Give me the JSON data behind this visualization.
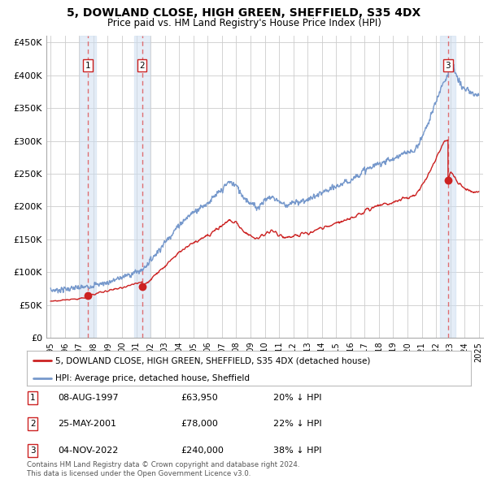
{
  "title": "5, DOWLAND CLOSE, HIGH GREEN, SHEFFIELD, S35 4DX",
  "subtitle": "Price paid vs. HM Land Registry's House Price Index (HPI)",
  "yticks": [
    0,
    50000,
    100000,
    150000,
    200000,
    250000,
    300000,
    350000,
    400000,
    450000
  ],
  "ytick_labels": [
    "£0",
    "£50K",
    "£100K",
    "£150K",
    "£200K",
    "£250K",
    "£300K",
    "£350K",
    "£400K",
    "£450K"
  ],
  "xlim_start": 1994.7,
  "xlim_end": 2025.3,
  "ylim_min": 0,
  "ylim_max": 460000,
  "sale_dates": [
    1997.6,
    2001.4,
    2022.84
  ],
  "sale_prices": [
    63950,
    78000,
    240000
  ],
  "sale_labels": [
    "1",
    "2",
    "3"
  ],
  "vline_color": "#dd4444",
  "vband_color": "#ccddf0",
  "vband_alpha": 0.5,
  "property_line_color": "#cc2222",
  "hpi_line_color": "#7799cc",
  "dot_color": "#cc2222",
  "dot_size": 50,
  "grid_color": "#cccccc",
  "background_color": "#ffffff",
  "legend_labels": [
    "5, DOWLAND CLOSE, HIGH GREEN, SHEFFIELD, S35 4DX (detached house)",
    "HPI: Average price, detached house, Sheffield"
  ],
  "table_data": [
    [
      "1",
      "08-AUG-1997",
      "£63,950",
      "20% ↓ HPI"
    ],
    [
      "2",
      "25-MAY-2001",
      "£78,000",
      "22% ↓ HPI"
    ],
    [
      "3",
      "04-NOV-2022",
      "£240,000",
      "38% ↓ HPI"
    ]
  ],
  "footer_text": "Contains HM Land Registry data © Crown copyright and database right 2024.\nThis data is licensed under the Open Government Licence v3.0.",
  "xtick_years": [
    1995,
    1996,
    1997,
    1998,
    1999,
    2000,
    2001,
    2002,
    2003,
    2004,
    2005,
    2006,
    2007,
    2008,
    2009,
    2010,
    2011,
    2012,
    2013,
    2014,
    2015,
    2016,
    2017,
    2018,
    2019,
    2020,
    2021,
    2022,
    2023,
    2024,
    2025
  ]
}
